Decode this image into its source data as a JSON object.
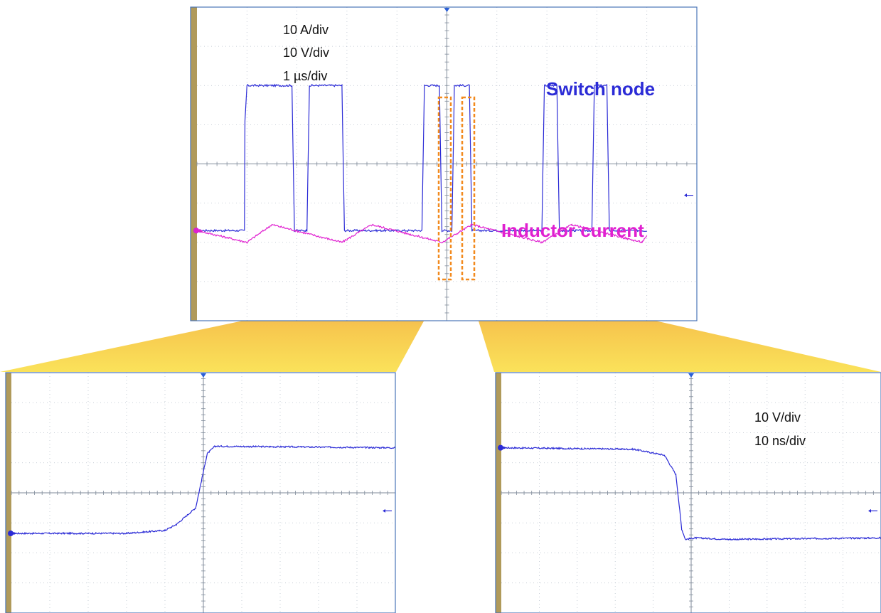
{
  "chart_data": [
    {
      "type": "line",
      "panel": "overview",
      "scale_labels": [
        "10 A/div",
        "10 V/div",
        "1 µs/div"
      ],
      "series": [
        {
          "name": "Switch node",
          "color": "#2b2bd6",
          "x": [
            0,
            0.95,
            0.96,
            1.0,
            1.9,
            1.95,
            2.2,
            2.25,
            2.9,
            2.95,
            4.5,
            4.55,
            4.85,
            4.9,
            5.1,
            5.15,
            5.45,
            5.5,
            6.9,
            6.95,
            7.2,
            7.25,
            7.9,
            7.95,
            8.2,
            8.25,
            9.0
          ],
          "y": [
            -1.7,
            -1.7,
            1.1,
            2.0,
            2.0,
            -1.7,
            -1.7,
            2.0,
            2.0,
            -1.7,
            -1.7,
            2.0,
            2.0,
            -1.7,
            -1.7,
            2.0,
            2.0,
            -1.7,
            -1.7,
            2.0,
            2.0,
            -1.7,
            -1.7,
            2.0,
            2.0,
            -1.7,
            -1.7
          ],
          "levels": {
            "high_div": 2.0,
            "low_div": -1.7
          }
        },
        {
          "name": "Inductor current",
          "color": "#e020d0",
          "x": [
            0,
            1.0,
            1.5,
            2.9,
            3.5,
            4.9,
            5.5,
            6.9,
            7.5,
            8.9,
            9.0
          ],
          "y": [
            -1.7,
            -2.0,
            -1.55,
            -2.0,
            -1.55,
            -2.0,
            -1.55,
            -2.0,
            -1.55,
            -2.0,
            -1.85
          ]
        }
      ],
      "xlim": [
        0,
        10
      ],
      "ylim": [
        -4,
        4
      ],
      "grid": true
    },
    {
      "type": "line",
      "panel": "zoom-rising-edge",
      "scale_labels": [],
      "series": [
        {
          "color": "#2b2bd6",
          "x": [
            0,
            3.0,
            4.0,
            4.3,
            4.8,
            5.1,
            5.3,
            10
          ],
          "y": [
            -1.35,
            -1.35,
            -1.25,
            -1.05,
            -0.5,
            1.3,
            1.55,
            1.5
          ]
        }
      ],
      "xlim": [
        0,
        10
      ],
      "ylim": [
        -4,
        4
      ],
      "grid": true
    },
    {
      "type": "line",
      "panel": "zoom-falling-edge",
      "scale_labels": [
        "10 V/div",
        "10 ns/div"
      ],
      "series": [
        {
          "color": "#2b2bd6",
          "x": [
            0,
            3.5,
            4.3,
            4.6,
            4.75,
            4.85,
            5.1,
            6.0,
            10
          ],
          "y": [
            1.5,
            1.45,
            1.25,
            0.6,
            -1.2,
            -1.55,
            -1.5,
            -1.55,
            -1.5
          ]
        }
      ],
      "xlim": [
        0,
        10
      ],
      "ylim": [
        -4,
        4
      ],
      "grid": true
    }
  ]
}
